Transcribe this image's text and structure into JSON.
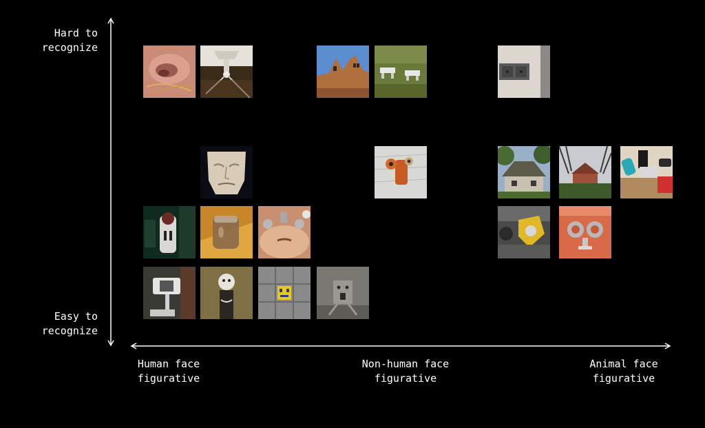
{
  "y_axis": {
    "top_line1": "Hard to",
    "top_line2": "recognize",
    "bottom_line1": "Easy to",
    "bottom_line2": "recognize"
  },
  "x_axis": {
    "left_line1": "Human face",
    "left_line2": "figurative",
    "mid_line1": "Non-human face",
    "mid_line2": "figurative",
    "right_line1": "Animal face",
    "right_line2": "figurative"
  },
  "colors": {
    "background": "#000000",
    "text": "#ffffff",
    "axis": "#ffffff"
  }
}
